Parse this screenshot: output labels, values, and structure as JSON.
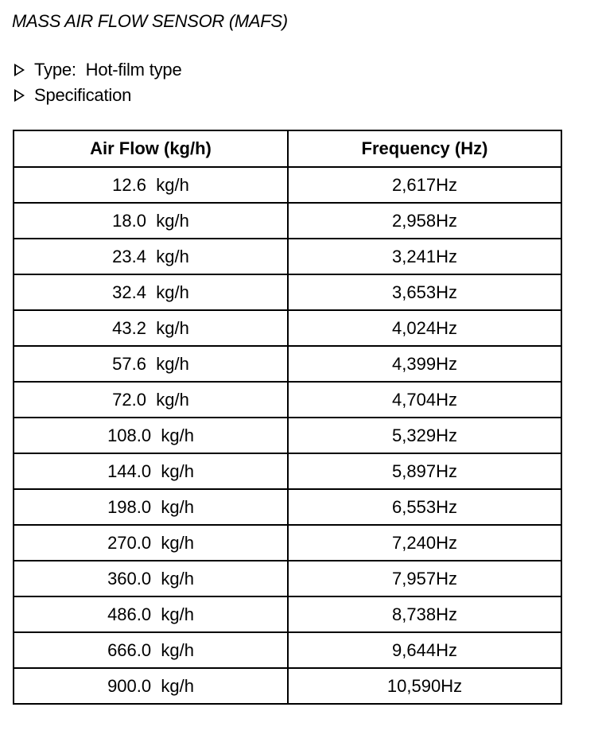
{
  "title": "MASS AIR FLOW SENSOR (MAFS)",
  "bullets": [
    {
      "icon": "triangle-right-outline-icon",
      "text": "Type:  Hot-film type"
    },
    {
      "icon": "triangle-right-outline-icon",
      "text": "Specification"
    }
  ],
  "table": {
    "headers": [
      "Air Flow (kg/h)",
      "Frequency (Hz)"
    ],
    "rows": [
      [
        "12.6  kg/h",
        "2,617Hz"
      ],
      [
        "18.0  kg/h",
        "2,958Hz"
      ],
      [
        "23.4  kg/h",
        "3,241Hz"
      ],
      [
        "32.4  kg/h",
        "3,653Hz"
      ],
      [
        "43.2  kg/h",
        "4,024Hz"
      ],
      [
        "57.6  kg/h",
        "4,399Hz"
      ],
      [
        "72.0  kg/h",
        "4,704Hz"
      ],
      [
        "108.0  kg/h",
        "5,329Hz"
      ],
      [
        "144.0  kg/h",
        "5,897Hz"
      ],
      [
        "198.0  kg/h",
        "6,553Hz"
      ],
      [
        "270.0  kg/h",
        "7,240Hz"
      ],
      [
        "360.0  kg/h",
        "7,957Hz"
      ],
      [
        "486.0  kg/h",
        "8,738Hz"
      ],
      [
        "666.0  kg/h",
        "9,644Hz"
      ],
      [
        "900.0  kg/h",
        "10,590Hz"
      ]
    ]
  }
}
